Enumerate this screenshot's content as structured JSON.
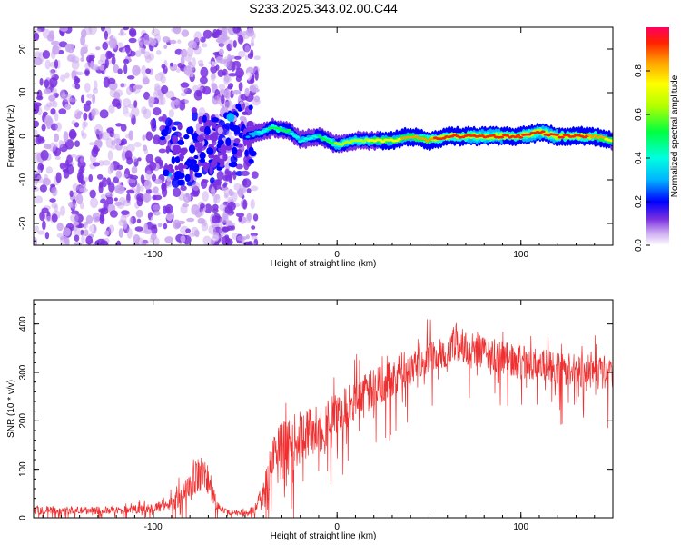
{
  "title": "S233.2025.343.02.00.C44",
  "chart_data": [
    {
      "type": "heatmap",
      "xlabel": "Height of straight line (km)",
      "ylabel": "Frequency (Hz)",
      "xlim": [
        -165,
        150
      ],
      "ylim": [
        -25,
        25
      ],
      "xticks": [
        -100,
        0,
        100
      ],
      "yticks": [
        -20,
        -10,
        0,
        10,
        20
      ],
      "colorbar": {
        "label": "Normalized spectral amplitude",
        "range": [
          0,
          1
        ],
        "ticks": [
          "0.0",
          "0.2",
          "0.4",
          "0.6",
          "0.8"
        ],
        "colors": [
          "#ffffff",
          "#c9a6f0",
          "#7a30e0",
          "#0000ff",
          "#00b4ff",
          "#00ffe0",
          "#00ff40",
          "#b4ff00",
          "#ffff00",
          "#ffa000",
          "#ff2000",
          "#ff0060"
        ]
      },
      "ridge": {
        "description_points_x": [
          -50,
          -40,
          -35,
          -25,
          -20,
          -10,
          0,
          10,
          20,
          30,
          40,
          50,
          60,
          70,
          80,
          90,
          100,
          110,
          120,
          130,
          140,
          150
        ],
        "frequency_hz": [
          0,
          1,
          2,
          1,
          -1,
          0,
          -2,
          -1,
          -1,
          -1,
          0,
          -1,
          0,
          0,
          0,
          0,
          0,
          1,
          0,
          0,
          0,
          -1
        ],
        "amplitude": [
          0.3,
          0.45,
          0.55,
          0.5,
          0.45,
          0.5,
          0.6,
          0.65,
          0.7,
          0.75,
          0.8,
          0.85,
          0.9,
          0.9,
          0.92,
          0.9,
          0.9,
          0.95,
          0.9,
          0.9,
          0.85,
          0.7
        ]
      }
    },
    {
      "type": "line",
      "xlabel": "Height of straight line (km)",
      "ylabel": "SNR (10 * v/v)",
      "xlim": [
        -165,
        150
      ],
      "ylim": [
        0,
        450
      ],
      "xticks": [
        -100,
        0,
        100
      ],
      "yticks": [
        0,
        100,
        200,
        300,
        400
      ],
      "color": "#f03030",
      "envelope_x": [
        -165,
        -120,
        -100,
        -90,
        -80,
        -75,
        -70,
        -65,
        -60,
        -50,
        -45,
        -40,
        -35,
        -30,
        -25,
        -20,
        -15,
        -10,
        -5,
        0,
        10,
        20,
        30,
        40,
        50,
        60,
        65,
        70,
        80,
        90,
        100,
        110,
        120,
        130,
        140,
        150
      ],
      "envelope_y": [
        15,
        15,
        20,
        30,
        60,
        95,
        75,
        20,
        12,
        10,
        15,
        45,
        120,
        140,
        150,
        165,
        175,
        185,
        200,
        210,
        240,
        265,
        290,
        315,
        335,
        345,
        360,
        350,
        340,
        330,
        320,
        315,
        310,
        305,
        300,
        300
      ],
      "noise_amplitude": [
        8,
        8,
        10,
        15,
        30,
        40,
        35,
        10,
        6,
        6,
        10,
        30,
        60,
        60,
        60,
        55,
        55,
        55,
        50,
        50,
        45,
        45,
        40,
        40,
        35,
        35,
        45,
        40,
        35,
        35,
        35,
        35,
        35,
        35,
        35,
        35
      ]
    }
  ]
}
